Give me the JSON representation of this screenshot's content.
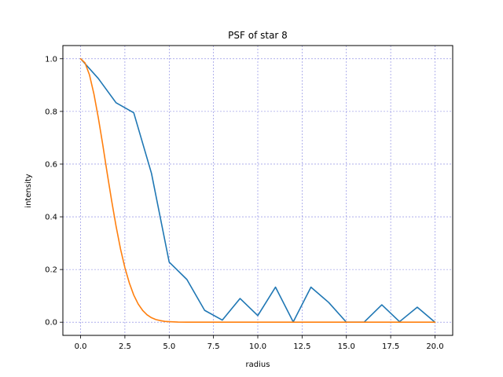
{
  "chart_data": {
    "type": "line",
    "title": "PSF of star 8",
    "xlabel": "radius",
    "ylabel": "intensity",
    "xlim": [
      -1.0,
      21.0
    ],
    "ylim": [
      -0.05,
      1.05
    ],
    "xticks": [
      0.0,
      2.5,
      5.0,
      7.5,
      10.0,
      12.5,
      15.0,
      17.5,
      20.0
    ],
    "xtick_labels": [
      "0.0",
      "2.5",
      "5.0",
      "7.5",
      "10.0",
      "12.5",
      "15.0",
      "17.5",
      "20.0"
    ],
    "yticks": [
      0.0,
      0.2,
      0.4,
      0.6,
      0.8,
      1.0
    ],
    "ytick_labels": [
      "0.0",
      "0.2",
      "0.4",
      "0.6",
      "0.8",
      "1.0"
    ],
    "grid": true,
    "grid_color": "#7f7fe0",
    "series": [
      {
        "color": "#1f77b4",
        "x": [
          0,
          1,
          2,
          3,
          4,
          5,
          6,
          7,
          8,
          9,
          10,
          11,
          12,
          13,
          14,
          15,
          16,
          17,
          18,
          19,
          20
        ],
        "y": [
          1.0,
          0.925,
          0.833,
          0.795,
          0.565,
          0.228,
          0.162,
          0.045,
          0.008,
          0.09,
          0.025,
          0.133,
          0.001,
          0.133,
          0.075,
          0.0,
          0.0,
          0.066,
          0.002,
          0.057,
          0.0
        ]
      },
      {
        "color": "#ff7f0e",
        "x": [
          0.0,
          0.25,
          0.5,
          0.75,
          1.0,
          1.25,
          1.5,
          1.75,
          2.0,
          2.25,
          2.5,
          2.75,
          3.0,
          3.25,
          3.5,
          3.75,
          4.0,
          4.25,
          4.5,
          4.75,
          5.0,
          5.5,
          6.0,
          6.5,
          7.0,
          8.0,
          10.0,
          12.5,
          15.0,
          17.5,
          20.0
        ],
        "y": [
          1.0,
          0.984,
          0.939,
          0.867,
          0.776,
          0.674,
          0.566,
          0.462,
          0.365,
          0.279,
          0.207,
          0.149,
          0.103,
          0.069,
          0.045,
          0.028,
          0.017,
          0.01,
          0.006,
          0.003,
          0.002,
          0.0005,
          0.0001,
          0.0,
          0.0,
          0.0,
          0.0,
          0.0,
          0.0,
          0.0,
          0.0
        ]
      }
    ]
  }
}
